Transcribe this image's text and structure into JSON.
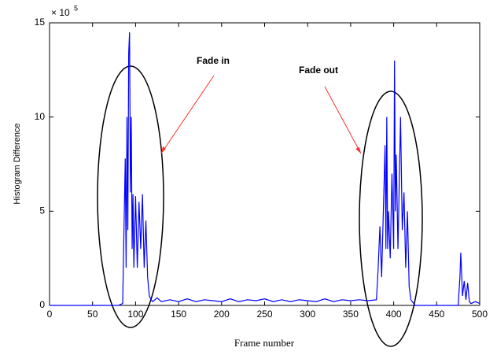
{
  "chart_data": {
    "type": "line",
    "x_label": "Frame number",
    "y_label": "Histogram Difference",
    "y_scale_label": {
      "base": "× 10",
      "exponent": "5"
    },
    "annotations": [
      "Fade in",
      "Fade out"
    ],
    "x": [
      0,
      50,
      80,
      85,
      88,
      89,
      90,
      91,
      92,
      93,
      94,
      95,
      96,
      97,
      98,
      100,
      102,
      104,
      106,
      108,
      110,
      112,
      114,
      116,
      118,
      120,
      125,
      130,
      140,
      150,
      160,
      170,
      180,
      190,
      200,
      210,
      220,
      230,
      240,
      250,
      260,
      270,
      280,
      290,
      300,
      310,
      320,
      330,
      340,
      350,
      360,
      370,
      380,
      382,
      384,
      386,
      388,
      390,
      391,
      392,
      393,
      394,
      396,
      398,
      400,
      401,
      402,
      403,
      405,
      408,
      410,
      412,
      414,
      416,
      418,
      420,
      425,
      475,
      477,
      478,
      480,
      482,
      484,
      486,
      488,
      490,
      495,
      500
    ],
    "series": [
      {
        "name": "Histogram Difference",
        "color": "#0000ff",
        "values": [
          0,
          0,
          0,
          0.1,
          7.8,
          2,
          10,
          4,
          13.4,
          14.5,
          6,
          10,
          3,
          5.9,
          2,
          5.8,
          2,
          5.5,
          3,
          5.9,
          2,
          4.5,
          1.5,
          0.5,
          0.3,
          0.2,
          0.4,
          0.2,
          0.3,
          0.2,
          0.35,
          0.2,
          0.3,
          0.25,
          0.2,
          0.35,
          0.2,
          0.3,
          0.25,
          0.35,
          0.2,
          0.3,
          0.2,
          0.3,
          0.25,
          0.2,
          0.35,
          0.2,
          0.3,
          0.25,
          0.3,
          0.25,
          0.3,
          2,
          4.2,
          1.5,
          5,
          8.5,
          3,
          10,
          3,
          5,
          2.5,
          7,
          3,
          13,
          5,
          8,
          3,
          10,
          4,
          6,
          2,
          5,
          1,
          0.3,
          0,
          0,
          1.5,
          2.8,
          0.5,
          1.3,
          0.3,
          1.2,
          0.2,
          0.1,
          0.2,
          0.1
        ]
      }
    ],
    "xlim": [
      0,
      500
    ],
    "xticks": [
      0,
      50,
      100,
      150,
      200,
      250,
      300,
      350,
      400,
      450,
      500
    ],
    "ylim": [
      0,
      15
    ],
    "yticks": [
      0,
      5,
      10,
      15
    ],
    "grid": false
  }
}
